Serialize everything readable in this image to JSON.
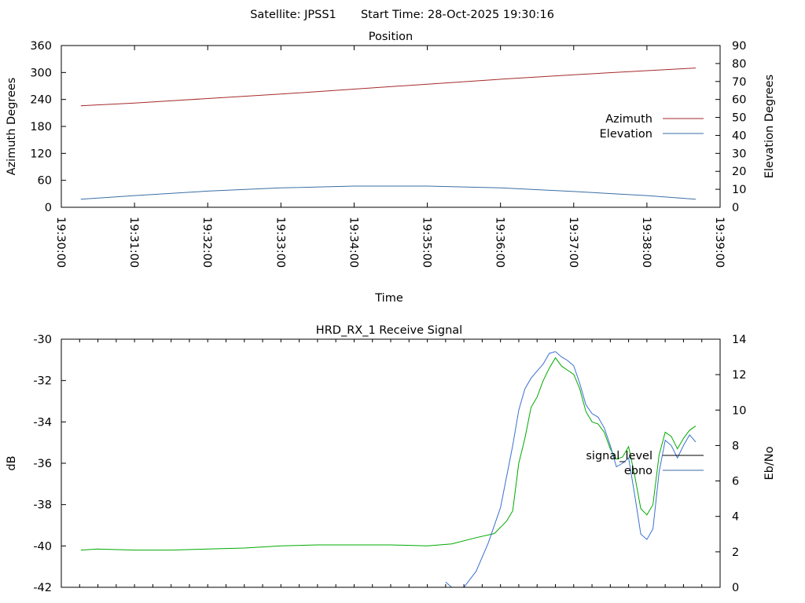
{
  "header": {
    "satellite": "Satellite: JPSS1",
    "start_time": "Start Time: 28-Oct-2025 19:30:16"
  },
  "colors": {
    "azimuth": "#a52a2a",
    "elevation": "#3a6ea5",
    "signal_early": "#8b1a1a",
    "signal_level": "#00aa00",
    "ebno": "#3a6fd0",
    "legend_signal": "#000000",
    "legend_ebno": "#3a6ea5",
    "axis": "#000000"
  },
  "chart_data": [
    {
      "type": "line",
      "title": "Position",
      "xlabel": "Time",
      "ylabel": "Azimuth Degrees",
      "y2label": "Elevation Degrees",
      "xlim": [
        "19:30:00",
        "19:39:00"
      ],
      "x_ticks": [
        "19:30:00",
        "19:31:00",
        "19:32:00",
        "19:33:00",
        "19:34:00",
        "19:35:00",
        "19:36:00",
        "19:37:00",
        "19:38:00",
        "19:39:00"
      ],
      "ylim": [
        0,
        360
      ],
      "y_ticks": [
        0,
        60,
        120,
        180,
        240,
        300,
        360
      ],
      "y2lim": [
        0,
        90
      ],
      "y2_ticks": [
        0,
        10,
        20,
        30,
        40,
        50,
        60,
        70,
        80,
        90
      ],
      "legend_position": "right",
      "series": [
        {
          "name": "Azimuth",
          "axis": "y",
          "color_key": "azimuth",
          "points": [
            [
              "19:30:16",
              226
            ],
            [
              "19:31:00",
              232
            ],
            [
              "19:32:00",
              242
            ],
            [
              "19:33:00",
              252
            ],
            [
              "19:34:00",
              263
            ],
            [
              "19:35:00",
              274
            ],
            [
              "19:36:00",
              285
            ],
            [
              "19:37:00",
              295
            ],
            [
              "19:38:00",
              304
            ],
            [
              "19:38:40",
              310
            ]
          ]
        },
        {
          "name": "Elevation",
          "axis": "y2",
          "color_key": "elevation",
          "points": [
            [
              "19:30:16",
              4.5
            ],
            [
              "19:31:00",
              6.5
            ],
            [
              "19:32:00",
              9.0
            ],
            [
              "19:33:00",
              10.8
            ],
            [
              "19:34:00",
              11.8
            ],
            [
              "19:35:00",
              11.8
            ],
            [
              "19:36:00",
              10.8
            ],
            [
              "19:37:00",
              8.8
            ],
            [
              "19:38:00",
              6.5
            ],
            [
              "19:38:40",
              4.5
            ]
          ]
        }
      ]
    },
    {
      "type": "line",
      "title": "HRD_RX_1 Receive Signal",
      "ylabel": "dB",
      "y2label": "Eb/No",
      "xlim": [
        "19:30:00",
        "19:39:00"
      ],
      "ylim": [
        -42,
        -30
      ],
      "y_ticks": [
        -42,
        -40,
        -38,
        -36,
        -34,
        -32,
        -30
      ],
      "y2lim": [
        0,
        14
      ],
      "y2_ticks": [
        0,
        2,
        4,
        6,
        8,
        10,
        12,
        14
      ],
      "legend_position": "right",
      "series": [
        {
          "name": "signal_level",
          "axis": "y",
          "color_key": "signal_level",
          "points": [
            [
              "19:30:16",
              -40.2
            ],
            [
              "19:30:30",
              -40.15
            ],
            [
              "19:31:00",
              -40.2
            ],
            [
              "19:31:30",
              -40.2
            ],
            [
              "19:32:00",
              -40.15
            ],
            [
              "19:32:30",
              -40.1
            ],
            [
              "19:33:00",
              -40.0
            ],
            [
              "19:33:30",
              -39.95
            ],
            [
              "19:34:00",
              -39.95
            ],
            [
              "19:34:30",
              -39.95
            ],
            [
              "19:35:00",
              -40.0
            ],
            [
              "19:35:20",
              -39.9
            ],
            [
              "19:35:40",
              -39.6
            ],
            [
              "19:35:55",
              -39.4
            ],
            [
              "19:36:05",
              -38.8
            ],
            [
              "19:36:10",
              -38.3
            ],
            [
              "19:36:15",
              -36.0
            ],
            [
              "19:36:20",
              -34.8
            ],
            [
              "19:36:25",
              -33.3
            ],
            [
              "19:36:30",
              -32.8
            ],
            [
              "19:36:35",
              -32.0
            ],
            [
              "19:36:40",
              -31.4
            ],
            [
              "19:36:45",
              -30.9
            ],
            [
              "19:36:50",
              -31.3
            ],
            [
              "19:36:55",
              -31.5
            ],
            [
              "19:37:00",
              -31.7
            ],
            [
              "19:37:05",
              -32.4
            ],
            [
              "19:37:10",
              -33.5
            ],
            [
              "19:37:15",
              -34.0
            ],
            [
              "19:37:20",
              -34.1
            ],
            [
              "19:37:25",
              -34.5
            ],
            [
              "19:37:30",
              -35.3
            ],
            [
              "19:37:35",
              -35.8
            ],
            [
              "19:37:40",
              -35.7
            ],
            [
              "19:37:45",
              -35.2
            ],
            [
              "19:37:50",
              -36.6
            ],
            [
              "19:37:55",
              -38.2
            ],
            [
              "19:38:00",
              -38.5
            ],
            [
              "19:38:05",
              -38.0
            ],
            [
              "19:38:10",
              -35.6
            ],
            [
              "19:38:15",
              -34.5
            ],
            [
              "19:38:20",
              -34.7
            ],
            [
              "19:38:25",
              -35.3
            ],
            [
              "19:38:30",
              -34.8
            ],
            [
              "19:38:35",
              -34.4
            ],
            [
              "19:38:40",
              -34.2
            ]
          ]
        },
        {
          "name": "ebno",
          "axis": "y2",
          "color_key": "ebno",
          "points": [
            [
              "19:35:15",
              0.3
            ],
            [
              "19:35:20",
              0.0
            ],
            [
              "19:35:25",
              0.0
            ],
            [
              "19:35:30",
              0.0
            ],
            [
              "19:35:40",
              0.9
            ],
            [
              "19:35:50",
              2.5
            ],
            [
              "19:36:00",
              4.5
            ],
            [
              "19:36:10",
              8.0
            ],
            [
              "19:36:15",
              10.0
            ],
            [
              "19:36:20",
              11.2
            ],
            [
              "19:36:25",
              11.8
            ],
            [
              "19:36:30",
              12.2
            ],
            [
              "19:36:35",
              12.6
            ],
            [
              "19:36:40",
              13.2
            ],
            [
              "19:36:45",
              13.3
            ],
            [
              "19:36:50",
              13.0
            ],
            [
              "19:36:55",
              12.8
            ],
            [
              "19:37:00",
              12.5
            ],
            [
              "19:37:05",
              11.5
            ],
            [
              "19:37:10",
              10.3
            ],
            [
              "19:37:15",
              9.8
            ],
            [
              "19:37:20",
              9.6
            ],
            [
              "19:37:25",
              9.0
            ],
            [
              "19:37:30",
              8.0
            ],
            [
              "19:37:35",
              6.8
            ],
            [
              "19:37:40",
              7.0
            ],
            [
              "19:37:45",
              7.3
            ],
            [
              "19:37:50",
              5.2
            ],
            [
              "19:37:55",
              3.0
            ],
            [
              "19:38:00",
              2.7
            ],
            [
              "19:38:05",
              3.3
            ],
            [
              "19:38:10",
              6.5
            ],
            [
              "19:38:15",
              8.3
            ],
            [
              "19:38:20",
              8.0
            ],
            [
              "19:38:25",
              7.3
            ],
            [
              "19:38:30",
              8.0
            ],
            [
              "19:38:35",
              8.6
            ],
            [
              "19:38:40",
              8.2
            ]
          ]
        }
      ]
    }
  ]
}
